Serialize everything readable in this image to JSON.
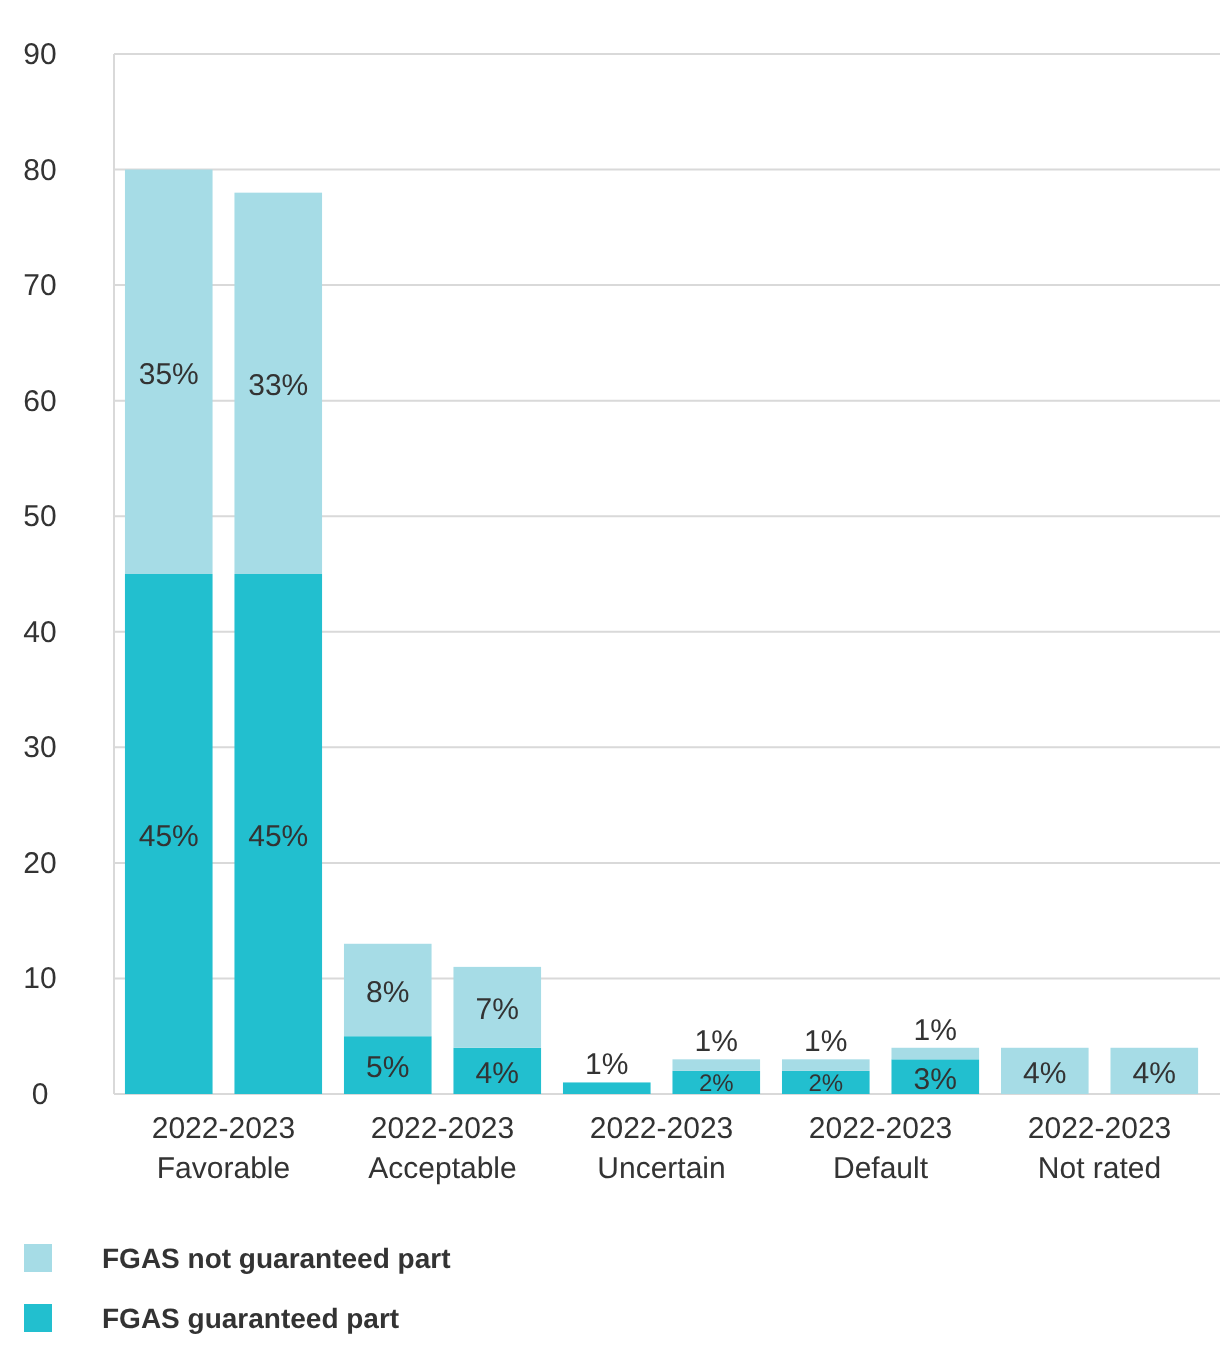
{
  "chart_data": {
    "type": "bar",
    "stacked": true,
    "categories": [
      "2022-2023\nFavorable",
      null,
      "2022-2023\nAcceptable",
      null,
      "2022-2023\nUncertain",
      null,
      "2022-2023\nDefault",
      null,
      "2022-2023\nNot rated",
      null
    ],
    "series": [
      {
        "name": "FGAS guaranteed part",
        "color": "#22bfcf",
        "values": [
          45,
          45,
          5,
          4,
          1,
          2,
          2,
          3,
          null,
          null
        ],
        "value_labels": [
          "45%",
          "45%",
          "5%",
          "4%",
          "1%",
          "2%",
          "2%",
          "3%",
          null,
          null
        ]
      },
      {
        "name": "FGAS not guaranteed part",
        "color": "#a6dce6",
        "values": [
          35,
          33,
          8,
          7,
          null,
          1,
          1,
          1,
          4,
          4
        ],
        "value_labels": [
          "35%",
          "33%",
          "8%",
          "7%",
          null,
          "1%",
          "1%",
          "1%",
          "4%",
          "4%"
        ]
      }
    ],
    "ylim": [
      0,
      90
    ],
    "yticks": [
      0,
      10,
      20,
      30,
      40,
      50,
      60,
      70,
      80,
      90
    ],
    "grid": "y",
    "legend": "bottom"
  }
}
